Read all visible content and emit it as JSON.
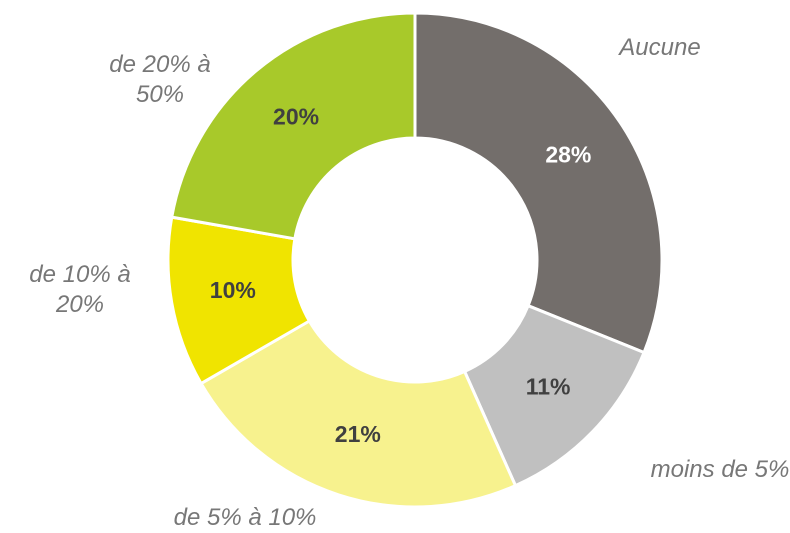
{
  "chart_data": {
    "type": "donut",
    "categories": [
      "Aucune",
      "moins de 5%",
      "de 5% à 10%",
      "de 10% à 20%",
      "de 20% à 50%"
    ],
    "values": [
      28,
      11,
      21,
      10,
      20
    ],
    "value_labels": [
      "28%",
      "11%",
      "21%",
      "10%",
      "20%"
    ],
    "colors": [
      "#736e6b",
      "#c0c0c0",
      "#f7f28e",
      "#f0e400",
      "#a8c92a"
    ]
  }
}
